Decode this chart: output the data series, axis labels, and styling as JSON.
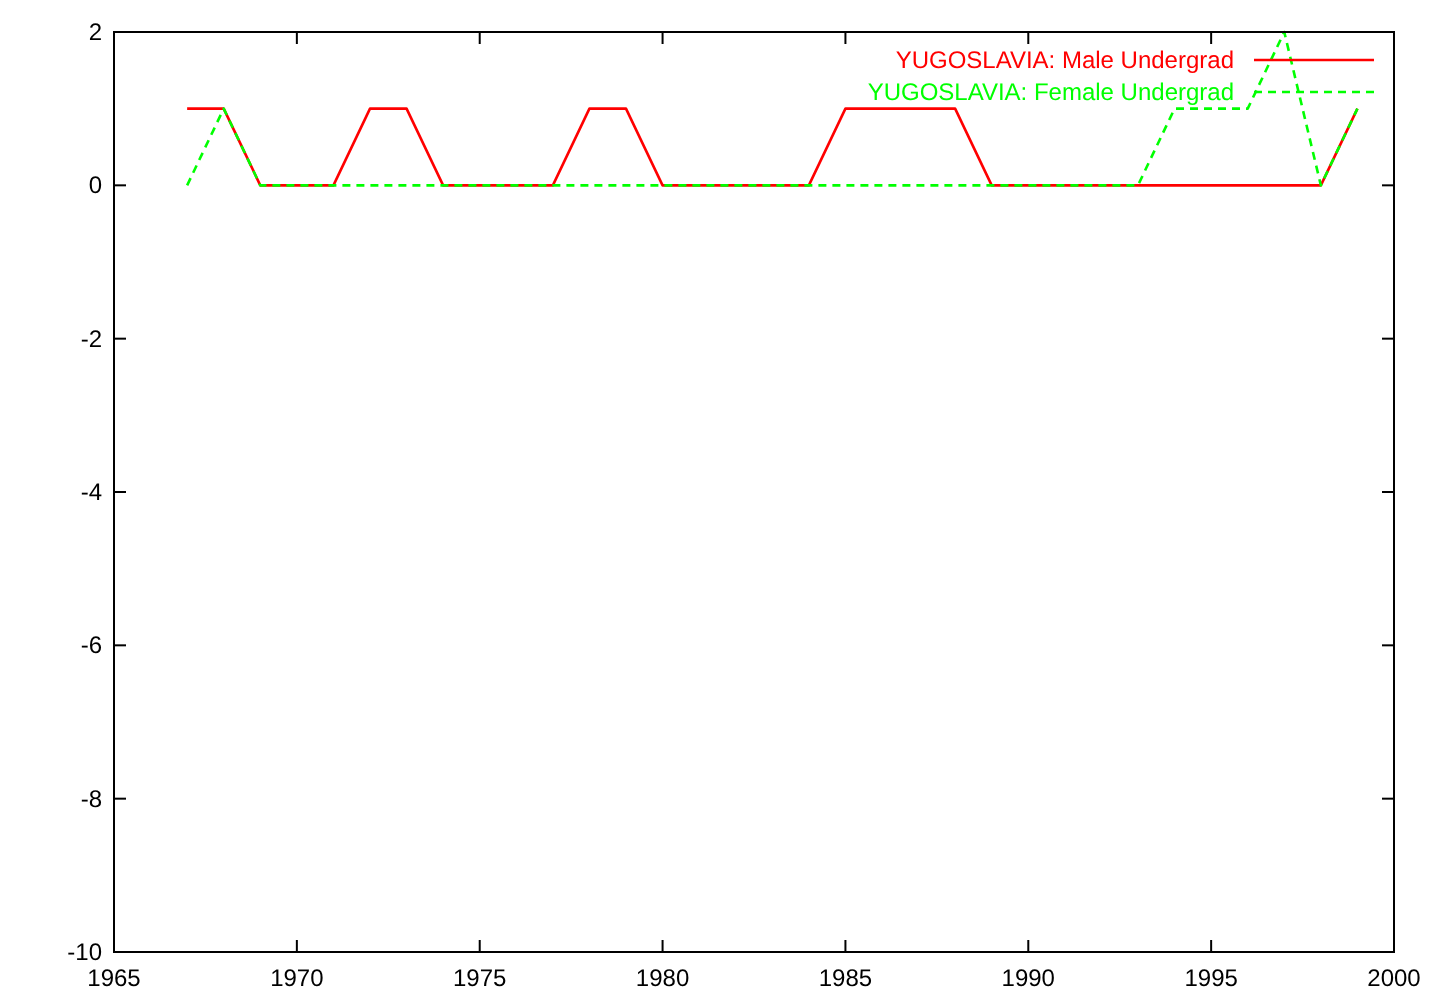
{
  "chart_data": {
    "type": "line",
    "x": [
      1967,
      1968,
      1969,
      1970,
      1971,
      1972,
      1973,
      1974,
      1975,
      1976,
      1977,
      1978,
      1979,
      1980,
      1981,
      1982,
      1983,
      1984,
      1985,
      1986,
      1987,
      1988,
      1989,
      1990,
      1991,
      1992,
      1993,
      1994,
      1995,
      1996,
      1997,
      1998,
      1999
    ],
    "series": [
      {
        "name": "YUGOSLAVIA: Male Undergrad",
        "color": "#ff0000",
        "line_style": "solid",
        "values": [
          1,
          1,
          0,
          0,
          0,
          1,
          1,
          0,
          0,
          0,
          0,
          1,
          1,
          0,
          0,
          0,
          0,
          0,
          1,
          1,
          1,
          1,
          0,
          0,
          0,
          0,
          0,
          0,
          0,
          0,
          0,
          0,
          1
        ]
      },
      {
        "name": "YUGOSLAVIA: Female Undergrad",
        "color": "#00ff00",
        "line_style": "dashed",
        "values": [
          0,
          1,
          0,
          0,
          0,
          0,
          0,
          0,
          0,
          0,
          0,
          0,
          0,
          0,
          0,
          0,
          0,
          0,
          0,
          0,
          0,
          0,
          0,
          0,
          0,
          0,
          0,
          1,
          1,
          1,
          2,
          0,
          1
        ]
      }
    ],
    "xlim": [
      1965,
      2000
    ],
    "xticks": [
      1965,
      1970,
      1975,
      1980,
      1985,
      1990,
      1995,
      2000
    ],
    "ylim": [
      -10,
      2
    ],
    "yticks": [
      -10,
      -8,
      -6,
      -4,
      -2,
      0,
      2
    ],
    "grid": false,
    "legend": "top right",
    "marker": "none"
  }
}
